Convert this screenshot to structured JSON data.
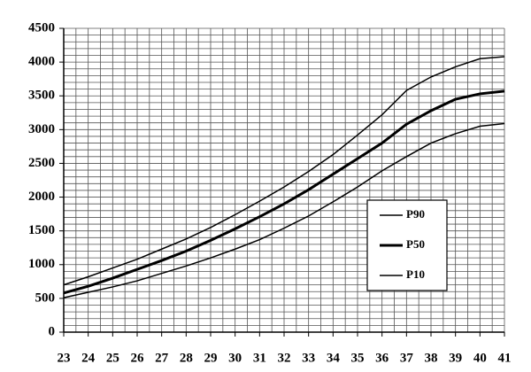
{
  "chart_data": {
    "type": "line",
    "x": [
      23,
      24,
      25,
      26,
      27,
      28,
      29,
      30,
      31,
      32,
      33,
      34,
      35,
      36,
      37,
      38,
      39,
      40,
      41
    ],
    "series": [
      {
        "name": "P90",
        "color": "#000000",
        "width": 1.5,
        "values": [
          700,
          820,
          950,
          1080,
          1230,
          1380,
          1550,
          1740,
          1940,
          2150,
          2380,
          2630,
          2920,
          3220,
          3580,
          3780,
          3930,
          4050,
          4080
        ]
      },
      {
        "name": "P50",
        "color": "#000000",
        "width": 3,
        "values": [
          580,
          680,
          800,
          930,
          1060,
          1200,
          1360,
          1530,
          1710,
          1900,
          2110,
          2340,
          2570,
          2800,
          3080,
          3280,
          3450,
          3530,
          3570
        ]
      },
      {
        "name": "P10",
        "color": "#000000",
        "width": 1.5,
        "values": [
          510,
          590,
          670,
          760,
          870,
          980,
          1100,
          1230,
          1370,
          1540,
          1720,
          1930,
          2150,
          2390,
          2600,
          2800,
          2940,
          3050,
          3090
        ]
      }
    ],
    "xlim": [
      23,
      41
    ],
    "xticks": [
      23,
      24,
      25,
      26,
      27,
      28,
      29,
      30,
      31,
      32,
      33,
      34,
      35,
      36,
      37,
      38,
      39,
      40,
      41
    ],
    "ylim": [
      0,
      4500
    ],
    "yticks": [
      0,
      500,
      1000,
      1500,
      2000,
      2500,
      3000,
      3500,
      4000,
      4500
    ],
    "ygrid": [
      0,
      100,
      200,
      300,
      400,
      500,
      600,
      700,
      800,
      900,
      1000,
      1100,
      1200,
      1300,
      1400,
      1500,
      1600,
      1700,
      1800,
      1900,
      2000,
      2100,
      2200,
      2300,
      2400,
      2500,
      2600,
      2700,
      2800,
      2900,
      3000,
      3100,
      3200,
      3300,
      3400,
      3500,
      3600,
      3700,
      3800,
      3900,
      4000,
      4100,
      4200,
      4300,
      4400,
      4500
    ],
    "xgrid": [
      23,
      23.5,
      24,
      24.5,
      25,
      25.5,
      26,
      26.5,
      27,
      27.5,
      28,
      28.5,
      29,
      29.5,
      30,
      30.5,
      31,
      31.5,
      32,
      32.5,
      33,
      33.5,
      34,
      34.5,
      35,
      35.5,
      36,
      36.5,
      37,
      37.5,
      38,
      38.5,
      39,
      39.5,
      40,
      40.5,
      41
    ],
    "grid": true,
    "legend": "lower right"
  }
}
